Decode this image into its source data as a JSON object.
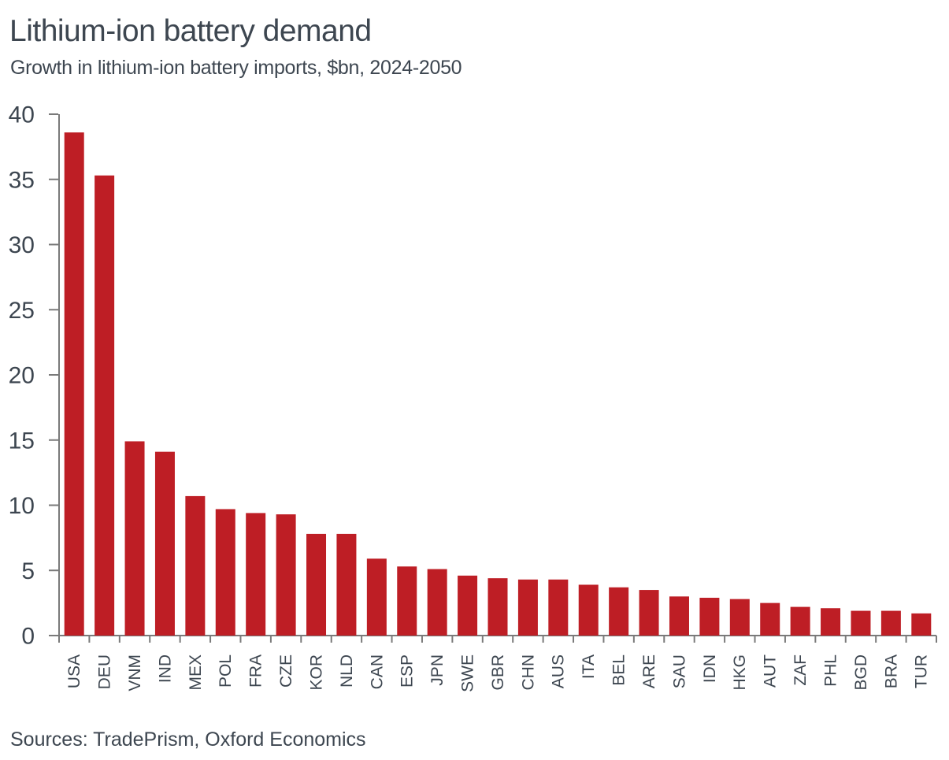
{
  "header": {
    "title": "Lithium-ion battery demand",
    "subtitle": "Growth in lithium-ion battery imports, $bn, 2024-2050"
  },
  "footer": {
    "source": "Sources: TradePrism, Oxford Economics"
  },
  "colors": {
    "bar": "#be1e25",
    "text": "#3d4650",
    "axis": "#7a7a7a",
    "background": "#ffffff"
  },
  "chart_data": {
    "type": "bar",
    "title": "Lithium-ion battery demand",
    "subtitle": "Growth in lithium-ion battery imports, $bn, 2024-2050",
    "xlabel": "",
    "ylabel": "",
    "ylim": [
      0,
      40
    ],
    "yticks": [
      0,
      5,
      10,
      15,
      20,
      25,
      30,
      35,
      40
    ],
    "grid": false,
    "legend": "none",
    "bar_color": "#be1e25",
    "x_tick_label_rotation": -90,
    "categories": [
      "USA",
      "DEU",
      "VNM",
      "IND",
      "MEX",
      "POL",
      "FRA",
      "CZE",
      "KOR",
      "NLD",
      "CAN",
      "ESP",
      "JPN",
      "SWE",
      "GBR",
      "CHN",
      "AUS",
      "ITA",
      "BEL",
      "ARE",
      "SAU",
      "IDN",
      "HKG",
      "AUT",
      "ZAF",
      "PHL",
      "BGD",
      "BRA",
      "TUR"
    ],
    "values": [
      38.6,
      35.3,
      14.9,
      14.1,
      10.7,
      9.7,
      9.4,
      9.3,
      7.8,
      7.8,
      5.9,
      5.3,
      5.1,
      4.6,
      4.4,
      4.3,
      4.3,
      3.9,
      3.7,
      3.5,
      3.0,
      2.9,
      2.8,
      2.5,
      2.2,
      2.1,
      1.9,
      1.9,
      1.7
    ],
    "source": "Sources: TradePrism, Oxford Economics"
  }
}
